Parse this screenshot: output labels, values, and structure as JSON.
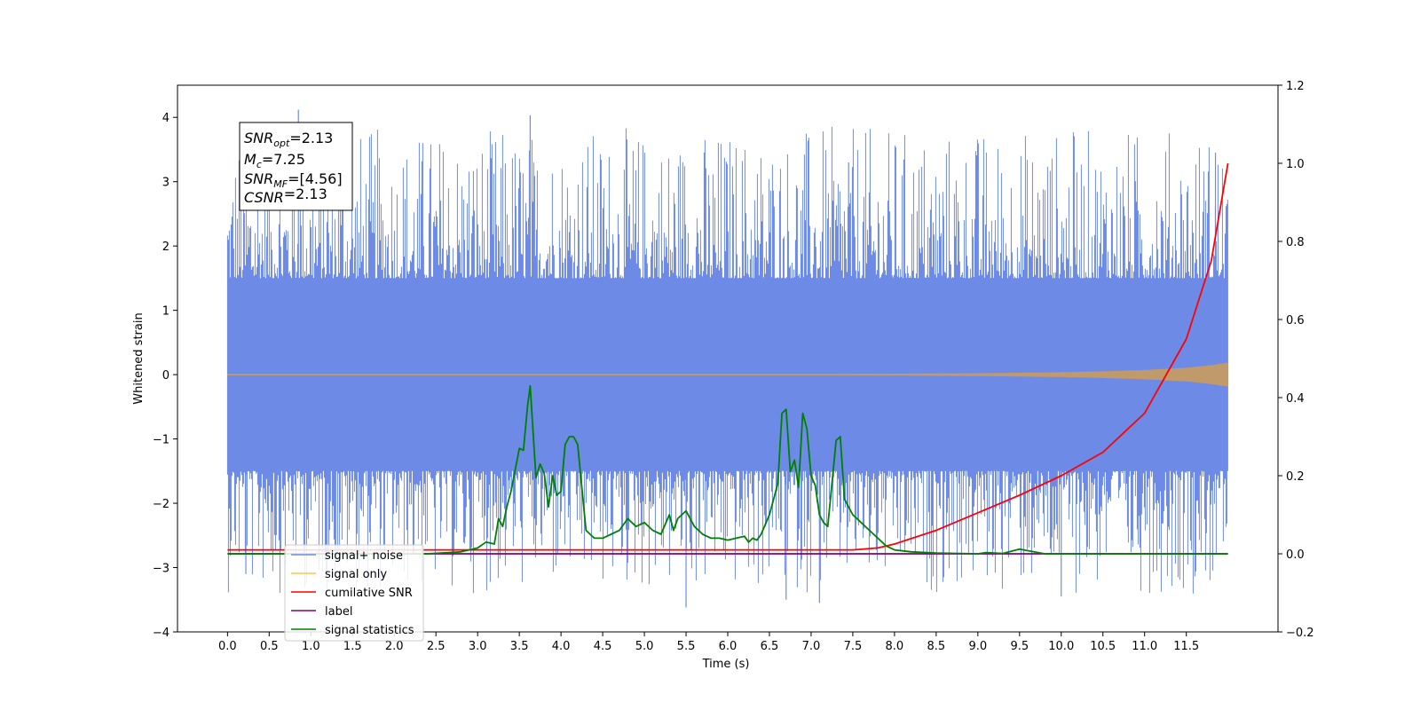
{
  "chart_data": {
    "type": "line",
    "title": "",
    "xlabel": "Time (s)",
    "ylabel": "Whitened strain",
    "xlim": [
      -0.6,
      12.6
    ],
    "ylim": [
      -4,
      4.5
    ],
    "ylim_right": [
      -0.2,
      1.2
    ],
    "grid": false,
    "legend_placement": "bottom-left",
    "x_ticks": [
      0.0,
      0.5,
      1.0,
      1.5,
      2.0,
      2.5,
      3.0,
      3.5,
      4.0,
      4.5,
      5.0,
      5.5,
      6.0,
      6.5,
      7.0,
      7.5,
      8.0,
      8.5,
      9.0,
      9.5,
      10.0,
      10.5,
      11.0,
      11.5
    ],
    "x_tick_labels": [
      "0.0",
      "0.5",
      "1.0",
      "1.5",
      "2.0",
      "2.5",
      "3.0",
      "3.5",
      "4.0",
      "4.5",
      "5.0",
      "5.5",
      "6.0",
      "6.5",
      "7.0",
      "7.5",
      "8.0",
      "8.5",
      "9.0",
      "9.5",
      "10.0",
      "10.5",
      "11.0",
      "11.5"
    ],
    "y_ticks_left": [
      -4,
      -3,
      -2,
      -1,
      0,
      1,
      2,
      3,
      4
    ],
    "y_tick_labels_left": [
      "−4",
      "−3",
      "−2",
      "−1",
      "0",
      "1",
      "2",
      "3",
      "4"
    ],
    "y_ticks_right": [
      -0.2,
      0.0,
      0.2,
      0.4,
      0.6,
      0.8,
      1.0,
      1.2
    ],
    "y_tick_labels_right": [
      "−0.2",
      "0.0",
      "0.2",
      "0.4",
      "0.6",
      "0.8",
      "1.0",
      "1.2"
    ],
    "annotation": {
      "lines": [
        {
          "base": "SNR",
          "sub": "opt",
          "value": "=2.13"
        },
        {
          "base": "M",
          "sub": "c",
          "value": "=7.25"
        },
        {
          "base": "SNR",
          "sub": "MF",
          "value": "=[4.56]"
        },
        {
          "base": "CSNR",
          "sub": "",
          "value": "=2.13"
        }
      ]
    },
    "series": [
      {
        "name": "signal+ noise",
        "axis": "left",
        "color": "#6d8be6",
        "style": "noise-band",
        "x_range": [
          0.0,
          12.0
        ],
        "typical_range": [
          -1.5,
          1.5
        ],
        "max": 4.12,
        "min": -3.62,
        "peaks": [
          [
            0.85,
            4.12
          ],
          [
            3.63,
            4.03
          ],
          [
            7.45,
            3.3
          ],
          [
            11.85,
            3.45
          ],
          [
            5.5,
            -3.62
          ],
          [
            10.0,
            -3.45
          ],
          [
            7.1,
            -3.55
          ],
          [
            0.22,
            -3.1
          ],
          [
            6.7,
            -3.5
          ]
        ]
      },
      {
        "name": "signal only",
        "axis": "left",
        "color": "#c09a6b",
        "style": "chirp",
        "x": [
          0.0,
          7.0,
          8.0,
          9.0,
          10.0,
          10.5,
          11.0,
          11.5,
          11.8,
          12.0
        ],
        "amplitude": [
          0.005,
          0.005,
          0.008,
          0.015,
          0.03,
          0.045,
          0.065,
          0.1,
          0.14,
          0.18
        ]
      },
      {
        "name": "cumilative SNR",
        "axis": "right",
        "color": "#ff0000",
        "x": [
          0.0,
          7.5,
          7.8,
          8.0,
          8.5,
          9.0,
          9.5,
          10.0,
          10.5,
          11.0,
          11.5,
          11.8,
          12.0
        ],
        "y": [
          0.01,
          0.01,
          0.015,
          0.025,
          0.06,
          0.105,
          0.15,
          0.2,
          0.26,
          0.36,
          0.55,
          0.75,
          1.0
        ]
      },
      {
        "name": "label",
        "axis": "right",
        "color": "#800080",
        "x": [
          0.0,
          12.0
        ],
        "y": [
          0.0,
          0.0
        ]
      },
      {
        "name": "signal statistics",
        "axis": "right",
        "color": "#008000",
        "x": [
          0.0,
          2.4,
          2.8,
          3.0,
          3.1,
          3.2,
          3.25,
          3.3,
          3.35,
          3.4,
          3.5,
          3.55,
          3.6,
          3.63,
          3.7,
          3.75,
          3.8,
          3.85,
          3.9,
          3.95,
          4.0,
          4.05,
          4.1,
          4.15,
          4.2,
          4.3,
          4.4,
          4.5,
          4.6,
          4.7,
          4.8,
          4.9,
          5.0,
          5.1,
          5.2,
          5.3,
          5.35,
          5.4,
          5.5,
          5.55,
          5.6,
          5.7,
          5.8,
          5.9,
          6.0,
          6.1,
          6.2,
          6.25,
          6.3,
          6.35,
          6.4,
          6.5,
          6.6,
          6.65,
          6.7,
          6.75,
          6.8,
          6.85,
          6.9,
          6.95,
          7.0,
          7.05,
          7.1,
          7.15,
          7.2,
          7.3,
          7.35,
          7.4,
          7.5,
          7.6,
          7.7,
          7.8,
          7.9,
          8.0,
          8.2,
          8.5,
          9.0,
          9.1,
          9.3,
          9.5,
          9.6,
          9.8,
          10.0,
          12.0
        ],
        "y": [
          0.0,
          0.0,
          0.005,
          0.015,
          0.03,
          0.025,
          0.09,
          0.07,
          0.12,
          0.16,
          0.27,
          0.265,
          0.38,
          0.43,
          0.195,
          0.23,
          0.205,
          0.12,
          0.2,
          0.15,
          0.16,
          0.28,
          0.3,
          0.3,
          0.28,
          0.06,
          0.04,
          0.04,
          0.05,
          0.06,
          0.09,
          0.07,
          0.08,
          0.06,
          0.05,
          0.1,
          0.06,
          0.09,
          0.11,
          0.09,
          0.07,
          0.05,
          0.04,
          0.04,
          0.035,
          0.04,
          0.045,
          0.03,
          0.04,
          0.035,
          0.05,
          0.1,
          0.18,
          0.36,
          0.37,
          0.21,
          0.24,
          0.17,
          0.36,
          0.32,
          0.2,
          0.175,
          0.1,
          0.08,
          0.07,
          0.29,
          0.3,
          0.14,
          0.1,
          0.08,
          0.06,
          0.04,
          0.02,
          0.01,
          0.005,
          0.002,
          0.0,
          0.003,
          0.001,
          0.012,
          0.008,
          0.0,
          0.0,
          0.0
        ]
      }
    ]
  }
}
